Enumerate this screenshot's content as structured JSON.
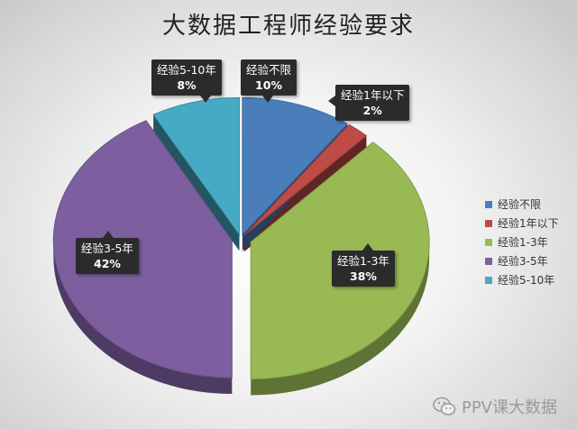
{
  "chart_data": {
    "type": "pie",
    "title": "大数据工程师经验要求",
    "categories": [
      "经验不限",
      "经验1年以下",
      "经验1-3年",
      "经验3-5年",
      "经验5-10年"
    ],
    "values": [
      10,
      2,
      38,
      42,
      8
    ],
    "value_labels": [
      "10%",
      "2%",
      "38%",
      "42%",
      "8%"
    ],
    "colors": [
      "#4a7ebb",
      "#be4b48",
      "#98b954",
      "#7d5fa0",
      "#46aac4"
    ],
    "style": "3d-exploded",
    "legend": {
      "position": "right",
      "entries": [
        "经验不限",
        "经验1年以下",
        "经验1-3年",
        "经验3-5年",
        "经验5-10年"
      ]
    }
  },
  "watermark": {
    "text": "PPV课大数据",
    "icon": "wechat-icon"
  }
}
